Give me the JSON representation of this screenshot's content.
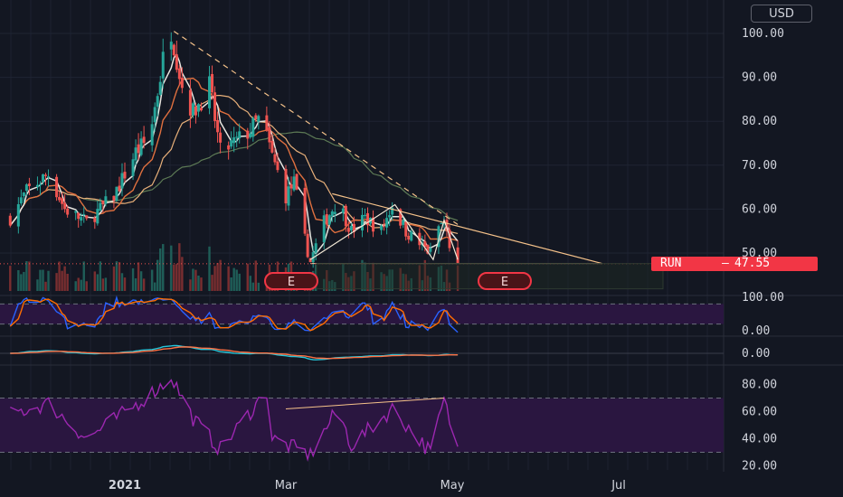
{
  "currency_label": "USD",
  "ticker": {
    "symbol": "RUN",
    "last_price": "47.55"
  },
  "earnings_markers": [
    "E",
    "E"
  ],
  "colors": {
    "background": "#131722",
    "up": "#26a69a",
    "down": "#ef5350",
    "oscillator_band": "#2a1640",
    "rsi_line": "#9c27b0",
    "trendline": "#f5c28a",
    "price_badge": "#f23645"
  },
  "chart_data": [
    {
      "type": "candlestick",
      "title": "",
      "y_axis": {
        "scale": "linear",
        "ticks": [
          {
            "value": 100,
            "label": "100.00"
          },
          {
            "value": 90,
            "label": "90.00"
          },
          {
            "value": 80,
            "label": "80.00"
          },
          {
            "value": 70,
            "label": "70.00"
          },
          {
            "value": 60,
            "label": "60.00"
          },
          {
            "value": 50,
            "label": "50.00"
          }
        ],
        "range": [
          44.5,
          106
        ]
      },
      "x_axis": {
        "ticks": [
          {
            "label": "2021",
            "bold": true,
            "date": "2021-01-01"
          },
          {
            "label": "Mar",
            "bold": false,
            "date": "2021-03-01"
          },
          {
            "label": "May",
            "bold": false,
            "date": "2021-05-01"
          },
          {
            "label": "Jul",
            "bold": false,
            "date": "2021-07-01"
          }
        ]
      },
      "price_anchors": [
        {
          "date": "2020-11-20",
          "close": 58
        },
        {
          "date": "2020-11-26",
          "close": 64
        },
        {
          "date": "2020-12-04",
          "close": 68
        },
        {
          "date": "2020-12-10",
          "close": 60
        },
        {
          "date": "2020-12-18",
          "close": 57
        },
        {
          "date": "2020-12-28",
          "close": 63
        },
        {
          "date": "2021-01-05",
          "close": 73
        },
        {
          "date": "2021-01-10",
          "close": 76
        },
        {
          "date": "2021-01-15",
          "close": 94
        },
        {
          "date": "2021-01-18",
          "close": 101
        },
        {
          "date": "2021-01-22",
          "close": 88
        },
        {
          "date": "2021-01-26",
          "close": 82
        },
        {
          "date": "2021-02-01",
          "close": 88
        },
        {
          "date": "2021-02-05",
          "close": 73
        },
        {
          "date": "2021-02-10",
          "close": 75
        },
        {
          "date": "2021-02-16",
          "close": 78
        },
        {
          "date": "2021-02-20",
          "close": 81
        },
        {
          "date": "2021-02-24",
          "close": 72
        },
        {
          "date": "2021-03-01",
          "close": 63
        },
        {
          "date": "2021-03-04",
          "close": 66
        },
        {
          "date": "2021-03-08",
          "close": 53
        },
        {
          "date": "2021-03-10",
          "close": 48
        },
        {
          "date": "2021-03-15",
          "close": 57
        },
        {
          "date": "2021-03-20",
          "close": 62
        },
        {
          "date": "2021-03-25",
          "close": 55
        },
        {
          "date": "2021-03-30",
          "close": 58
        },
        {
          "date": "2021-04-05",
          "close": 55
        },
        {
          "date": "2021-04-09",
          "close": 61
        },
        {
          "date": "2021-04-14",
          "close": 55
        },
        {
          "date": "2021-04-19",
          "close": 52
        },
        {
          "date": "2021-04-23",
          "close": 50
        },
        {
          "date": "2021-04-26",
          "close": 56
        },
        {
          "date": "2021-04-28",
          "close": 57
        },
        {
          "date": "2021-04-30",
          "close": 52
        },
        {
          "date": "2021-05-03",
          "close": 47.55
        }
      ],
      "horizontal_line": 47.55
    },
    {
      "type": "line",
      "title": "",
      "y_axis": {
        "ticks": [
          {
            "value": 100,
            "label": "100.00"
          },
          {
            "value": 0,
            "label": "0.00"
          }
        ],
        "range": [
          -5,
          105
        ]
      },
      "band": [
        20,
        80
      ]
    },
    {
      "type": "line",
      "title": "",
      "y_axis": {
        "ticks": [
          {
            "value": 0,
            "label": "0.00"
          }
        ],
        "range": [
          -4,
          4
        ]
      }
    },
    {
      "type": "line",
      "title": "",
      "y_axis": {
        "ticks": [
          {
            "value": 80,
            "label": "80.00"
          },
          {
            "value": 60,
            "label": "60.00"
          },
          {
            "value": 40,
            "label": "40.00"
          },
          {
            "value": 20,
            "label": "20.00"
          }
        ],
        "range": [
          15,
          92
        ]
      },
      "band": [
        30,
        70
      ],
      "anchors": [
        {
          "date": "2020-11-20",
          "value": 58
        },
        {
          "date": "2020-12-04",
          "value": 66
        },
        {
          "date": "2020-12-18",
          "value": 40
        },
        {
          "date": "2021-01-05",
          "value": 65
        },
        {
          "date": "2021-01-15",
          "value": 80
        },
        {
          "date": "2021-01-18",
          "value": 86
        },
        {
          "date": "2021-01-26",
          "value": 55
        },
        {
          "date": "2021-02-05",
          "value": 32
        },
        {
          "date": "2021-02-20",
          "value": 70
        },
        {
          "date": "2021-02-22",
          "value": 75
        },
        {
          "date": "2021-02-24",
          "value": 40
        },
        {
          "date": "2021-03-10",
          "value": 28
        },
        {
          "date": "2021-03-20",
          "value": 62
        },
        {
          "date": "2021-03-25",
          "value": 35
        },
        {
          "date": "2021-04-09",
          "value": 62
        },
        {
          "date": "2021-04-23",
          "value": 30
        },
        {
          "date": "2021-04-28",
          "value": 68
        },
        {
          "date": "2021-05-03",
          "value": 32
        }
      ]
    }
  ]
}
